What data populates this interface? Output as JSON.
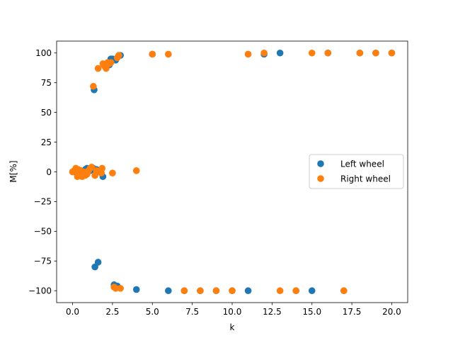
{
  "chart_data": {
    "type": "scatter",
    "title": "",
    "xlabel": "k",
    "ylabel": "M[%]",
    "xlim": [
      -1,
      21
    ],
    "ylim": [
      -110,
      110
    ],
    "x_ticks": [
      0.0,
      2.5,
      5.0,
      7.5,
      10.0,
      12.5,
      15.0,
      17.5,
      20.0
    ],
    "x_tick_labels": [
      "0.0",
      "2.5",
      "5.0",
      "7.5",
      "10.0",
      "12.5",
      "15.0",
      "17.5",
      "20.0"
    ],
    "y_ticks": [
      -100,
      -75,
      -50,
      -25,
      0,
      25,
      50,
      75,
      100
    ],
    "y_tick_labels": [
      "−100",
      "−75",
      "−50",
      "−25",
      "0",
      "25",
      "50",
      "75",
      "100"
    ],
    "grid": false,
    "legend_position": "center-right",
    "series": [
      {
        "name": "Left wheel",
        "color": "#1f77b4",
        "points": [
          [
            0.0,
            0
          ],
          [
            0.2,
            1
          ],
          [
            0.3,
            -2
          ],
          [
            0.4,
            0
          ],
          [
            0.5,
            1
          ],
          [
            0.6,
            -1
          ],
          [
            0.7,
            0
          ],
          [
            0.8,
            2
          ],
          [
            0.9,
            3
          ],
          [
            1.0,
            2
          ],
          [
            1.1,
            1
          ],
          [
            1.2,
            2
          ],
          [
            1.3,
            3
          ],
          [
            1.35,
            69
          ],
          [
            1.4,
            -80
          ],
          [
            1.5,
            2
          ],
          [
            1.6,
            -76
          ],
          [
            1.7,
            1
          ],
          [
            1.8,
            2
          ],
          [
            1.9,
            -4
          ],
          [
            2.0,
            90
          ],
          [
            2.1,
            89
          ],
          [
            2.2,
            91
          ],
          [
            2.3,
            90
          ],
          [
            2.4,
            95
          ],
          [
            2.5,
            95
          ],
          [
            2.6,
            -95
          ],
          [
            2.7,
            94
          ],
          [
            2.8,
            -96
          ],
          [
            2.9,
            98
          ],
          [
            3.0,
            98
          ],
          [
            4.0,
            -99
          ],
          [
            5.0,
            99
          ],
          [
            6.0,
            -100
          ],
          [
            7.0,
            -100
          ],
          [
            8.0,
            -100
          ],
          [
            9.0,
            -100
          ],
          [
            10.0,
            -100
          ],
          [
            11.0,
            -100
          ],
          [
            12.0,
            99
          ],
          [
            13.0,
            100
          ],
          [
            14.0,
            -100
          ],
          [
            15.0,
            -100
          ],
          [
            16.0,
            100
          ],
          [
            17.0,
            -100
          ],
          [
            18.0,
            100
          ],
          [
            19.0,
            100
          ],
          [
            20.0,
            100
          ]
        ]
      },
      {
        "name": "Right wheel",
        "color": "#ff7f0e",
        "points": [
          [
            0.0,
            0
          ],
          [
            0.1,
            1
          ],
          [
            0.2,
            3
          ],
          [
            0.3,
            -4
          ],
          [
            0.35,
            2
          ],
          [
            0.4,
            -3
          ],
          [
            0.5,
            1
          ],
          [
            0.6,
            -4
          ],
          [
            0.7,
            0
          ],
          [
            0.8,
            -3
          ],
          [
            0.9,
            -2
          ],
          [
            1.0,
            1
          ],
          [
            1.1,
            3
          ],
          [
            1.2,
            4
          ],
          [
            1.3,
            72
          ],
          [
            1.4,
            -3
          ],
          [
            1.5,
            1
          ],
          [
            1.6,
            87
          ],
          [
            1.7,
            0
          ],
          [
            1.8,
            -1
          ],
          [
            1.85,
            3
          ],
          [
            1.9,
            91
          ],
          [
            2.0,
            89
          ],
          [
            2.1,
            87
          ],
          [
            2.2,
            92
          ],
          [
            2.3,
            91
          ],
          [
            2.4,
            92
          ],
          [
            2.5,
            -1
          ],
          [
            2.6,
            -97
          ],
          [
            2.7,
            -98
          ],
          [
            2.8,
            96
          ],
          [
            2.9,
            98
          ],
          [
            3.0,
            -98
          ],
          [
            4.0,
            1
          ],
          [
            5.0,
            99
          ],
          [
            6.0,
            99
          ],
          [
            7.0,
            -100
          ],
          [
            8.0,
            -100
          ],
          [
            9.0,
            -100
          ],
          [
            10.0,
            -100
          ],
          [
            11.0,
            99
          ],
          [
            12.0,
            100
          ],
          [
            13.0,
            -100
          ],
          [
            14.0,
            -100
          ],
          [
            15.0,
            100
          ],
          [
            16.0,
            100
          ],
          [
            17.0,
            -100
          ],
          [
            18.0,
            100
          ],
          [
            19.0,
            100
          ],
          [
            20.0,
            100
          ]
        ]
      }
    ]
  }
}
